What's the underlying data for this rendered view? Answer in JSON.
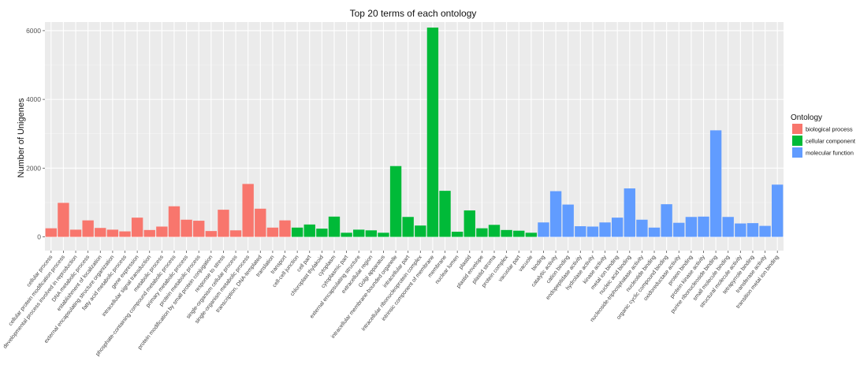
{
  "chart_data": {
    "type": "bar",
    "title": "Top 20 terms of each ontology",
    "xlabel": "",
    "ylabel": "Number of Unigenes",
    "ylim": [
      -400,
      6250
    ],
    "yticks": [
      0,
      2000,
      4000,
      6000
    ],
    "grid": true,
    "legend": {
      "title": "Ontology",
      "position": "right",
      "entries": [
        {
          "name": "biological process",
          "color": "#F8766D"
        },
        {
          "name": "cellular component",
          "color": "#00BA38"
        },
        {
          "name": "molecular function",
          "color": "#619CFF"
        }
      ]
    },
    "categories": [
      "cellular process",
      "cellular protein modification process",
      "developmental process involved in reproduction",
      "DNA metabolic process",
      "establishment of localization",
      "external encapsulating structure organization",
      "fatty acid metabolic process",
      "gene expression",
      "intracellular signal transduction",
      "metabolic process",
      "phosphate-containing compound metabolic process",
      "primary metabolic process",
      "protein metabolic process",
      "protein modification by small protein conjugation",
      "response to stress",
      "single-organism cellular process",
      "single-organism metabolic process",
      "transcription, DNA-templated",
      "translation",
      "transport",
      "cell-cell junction",
      "cell part",
      "chloroplast thylakoid",
      "cytoplasm",
      "cytoplasmic part",
      "external encapsulating structure",
      "extracellular region",
      "Golgi apparatus",
      "intracellular membrane-bounded organelle",
      "intracellular part",
      "intracellular ribonucleoprotein complex",
      "intrinsic component of membrane",
      "membrane",
      "nuclear lumen",
      "plastid",
      "plastid envelope",
      "plastid stroma",
      "protein complex",
      "vacuolar part",
      "vacuole",
      "binding",
      "catalytic activity",
      "cation binding",
      "endopeptidase activity",
      "hydrolase activity",
      "kinase activity",
      "metal ion binding",
      "nucleic acid binding",
      "nucleoside-triphosphatase activity",
      "nucleotide binding",
      "organic cyclic compound binding",
      "oxidoreductase activity",
      "protein binding",
      "protein kinase activity",
      "purine ribonucleoside binding",
      "small molecule binding",
      "structural molecule activity",
      "tetrapyrrole binding",
      "transferase activity",
      "transition metal ion binding"
    ],
    "groups": [
      "biological process",
      "biological process",
      "biological process",
      "biological process",
      "biological process",
      "biological process",
      "biological process",
      "biological process",
      "biological process",
      "biological process",
      "biological process",
      "biological process",
      "biological process",
      "biological process",
      "biological process",
      "biological process",
      "biological process",
      "biological process",
      "biological process",
      "biological process",
      "cellular component",
      "cellular component",
      "cellular component",
      "cellular component",
      "cellular component",
      "cellular component",
      "cellular component",
      "cellular component",
      "cellular component",
      "cellular component",
      "cellular component",
      "cellular component",
      "cellular component",
      "cellular component",
      "cellular component",
      "cellular component",
      "cellular component",
      "cellular component",
      "cellular component",
      "cellular component",
      "molecular function",
      "molecular function",
      "molecular function",
      "molecular function",
      "molecular function",
      "molecular function",
      "molecular function",
      "molecular function",
      "molecular function",
      "molecular function",
      "molecular function",
      "molecular function",
      "molecular function",
      "molecular function",
      "molecular function",
      "molecular function",
      "molecular function",
      "molecular function",
      "molecular function",
      "molecular function"
    ],
    "values": [
      250,
      990,
      210,
      480,
      260,
      210,
      160,
      560,
      200,
      300,
      890,
      500,
      470,
      170,
      790,
      190,
      1540,
      820,
      270,
      480,
      270,
      360,
      240,
      590,
      120,
      210,
      190,
      120,
      2060,
      580,
      330,
      6090,
      1340,
      150,
      770,
      250,
      350,
      200,
      180,
      120,
      420,
      1330,
      940,
      310,
      300,
      420,
      560,
      1410,
      500,
      270,
      950,
      410,
      580,
      590,
      3100,
      580,
      390,
      400,
      320,
      1520
    ]
  }
}
